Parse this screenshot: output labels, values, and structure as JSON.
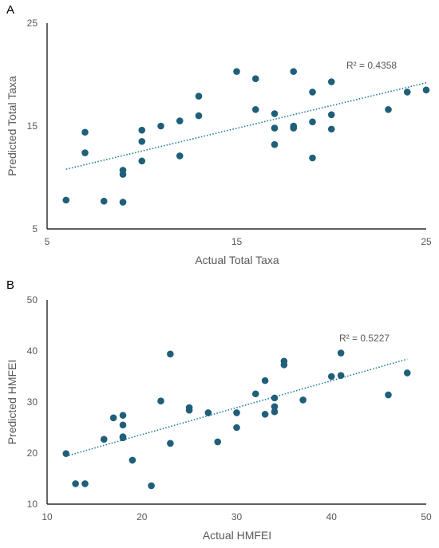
{
  "colors": {
    "point": "#1f5f7a",
    "trend": "#1f7a99",
    "axis": "#000000",
    "text": "#595959"
  },
  "chart_data": [
    {
      "type": "scatter",
      "panel_label": "A",
      "xlabel": "Actual Total Taxa",
      "ylabel": "Predicted Total Taxa",
      "xlim": [
        5,
        25
      ],
      "ylim": [
        5,
        25
      ],
      "xticks": [
        5,
        15,
        25
      ],
      "yticks": [
        5,
        15,
        25
      ],
      "x_tick_labels": [
        "5",
        "15",
        "25"
      ],
      "y_tick_labels": [
        "5",
        "15",
        "25"
      ],
      "r2_label": "R² = 0.4358",
      "trendline": {
        "x": [
          6,
          25
        ],
        "y": [
          10.8,
          19.2
        ]
      },
      "points": [
        {
          "x": 6,
          "y": 7.8
        },
        {
          "x": 7,
          "y": 14.4
        },
        {
          "x": 7,
          "y": 12.4
        },
        {
          "x": 8,
          "y": 7.7
        },
        {
          "x": 9,
          "y": 7.6
        },
        {
          "x": 9,
          "y": 10.7
        },
        {
          "x": 9,
          "y": 10.3
        },
        {
          "x": 10,
          "y": 14.6
        },
        {
          "x": 10,
          "y": 13.5
        },
        {
          "x": 10,
          "y": 11.6
        },
        {
          "x": 11,
          "y": 15.0
        },
        {
          "x": 12,
          "y": 15.5
        },
        {
          "x": 12,
          "y": 12.1
        },
        {
          "x": 13,
          "y": 17.9
        },
        {
          "x": 13,
          "y": 16.0
        },
        {
          "x": 15,
          "y": 20.3
        },
        {
          "x": 16,
          "y": 19.6
        },
        {
          "x": 16,
          "y": 16.6
        },
        {
          "x": 17,
          "y": 16.2
        },
        {
          "x": 17,
          "y": 14.8
        },
        {
          "x": 17,
          "y": 13.2
        },
        {
          "x": 18,
          "y": 20.3
        },
        {
          "x": 18,
          "y": 15.0
        },
        {
          "x": 18,
          "y": 14.8
        },
        {
          "x": 19,
          "y": 18.3
        },
        {
          "x": 19,
          "y": 15.4
        },
        {
          "x": 19,
          "y": 11.9
        },
        {
          "x": 20,
          "y": 19.3
        },
        {
          "x": 20,
          "y": 16.1
        },
        {
          "x": 20,
          "y": 14.7
        },
        {
          "x": 23,
          "y": 16.6
        },
        {
          "x": 24,
          "y": 18.3
        },
        {
          "x": 25,
          "y": 18.5
        }
      ]
    },
    {
      "type": "scatter",
      "panel_label": "B",
      "xlabel": "Actual HMFEI",
      "ylabel": "Predicted HMFEI",
      "xlim": [
        10,
        50
      ],
      "ylim": [
        10,
        50
      ],
      "xticks": [
        10,
        20,
        30,
        40,
        50
      ],
      "yticks": [
        10,
        20,
        30,
        40,
        50
      ],
      "x_tick_labels": [
        "10",
        "20",
        "30",
        "40",
        "50"
      ],
      "y_tick_labels": [
        "10",
        "20",
        "30",
        "40",
        "50"
      ],
      "r2_label": "R² = 0.5227",
      "trendline": {
        "x": [
          12,
          48
        ],
        "y": [
          19.4,
          38.4
        ]
      },
      "points": [
        {
          "x": 12,
          "y": 19.9
        },
        {
          "x": 13,
          "y": 14.0
        },
        {
          "x": 14,
          "y": 14.0
        },
        {
          "x": 16,
          "y": 22.7
        },
        {
          "x": 17,
          "y": 26.9
        },
        {
          "x": 18,
          "y": 27.4
        },
        {
          "x": 18,
          "y": 25.5
        },
        {
          "x": 18,
          "y": 23.2
        },
        {
          "x": 18,
          "y": 23.0
        },
        {
          "x": 19,
          "y": 18.6
        },
        {
          "x": 21,
          "y": 13.6
        },
        {
          "x": 22,
          "y": 30.2
        },
        {
          "x": 23,
          "y": 39.4
        },
        {
          "x": 23,
          "y": 21.9
        },
        {
          "x": 25,
          "y": 28.9
        },
        {
          "x": 25,
          "y": 28.4
        },
        {
          "x": 27,
          "y": 27.9
        },
        {
          "x": 28,
          "y": 22.2
        },
        {
          "x": 30,
          "y": 27.9
        },
        {
          "x": 30,
          "y": 25.0
        },
        {
          "x": 32,
          "y": 31.6
        },
        {
          "x": 33,
          "y": 34.2
        },
        {
          "x": 33,
          "y": 27.6
        },
        {
          "x": 34,
          "y": 30.8
        },
        {
          "x": 34,
          "y": 29.1
        },
        {
          "x": 34,
          "y": 28.1
        },
        {
          "x": 35,
          "y": 38.0
        },
        {
          "x": 35,
          "y": 37.3
        },
        {
          "x": 37,
          "y": 30.4
        },
        {
          "x": 40,
          "y": 35.0
        },
        {
          "x": 41,
          "y": 39.6
        },
        {
          "x": 41,
          "y": 35.2
        },
        {
          "x": 46,
          "y": 31.4
        },
        {
          "x": 48,
          "y": 35.7
        }
      ]
    }
  ]
}
